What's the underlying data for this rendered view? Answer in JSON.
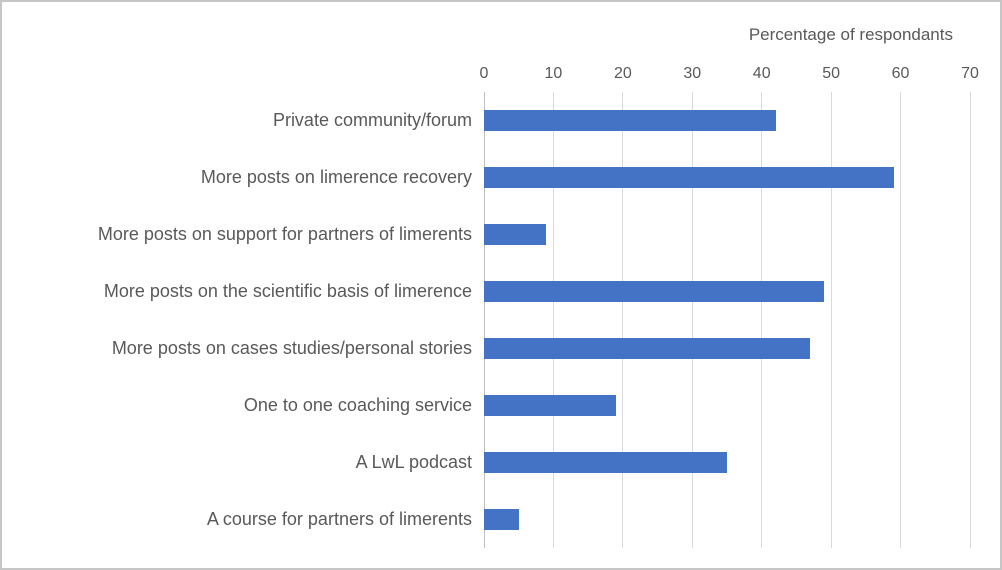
{
  "chart_data": {
    "type": "bar",
    "orientation": "horizontal",
    "title": "Percentage of respondants",
    "categories": [
      "Private community/forum",
      "More posts on limerence recovery",
      "More posts on support for partners of limerents",
      "More posts on the scientific basis of limerence",
      "More posts on cases studies/personal stories",
      "One to one coaching service",
      "A LwL podcast",
      "A course for partners of limerents"
    ],
    "values": [
      42,
      59,
      9,
      49,
      47,
      19,
      35,
      5
    ],
    "xlabel": "Percentage of respondants",
    "ylabel": "",
    "xlim": [
      0,
      70
    ],
    "xticks": [
      0,
      10,
      20,
      30,
      40,
      50,
      60,
      70
    ],
    "xtick_labels": [
      "0",
      "10",
      "20",
      "30",
      "40",
      "50",
      "60",
      "70"
    ],
    "grid": true,
    "legend": false,
    "colors": {
      "bar": "#4472C4",
      "gridline": "#D9D9D9",
      "axis_line": "#BFBFBF",
      "text": "#595959",
      "background": "#FFFFFF",
      "border": "#C6C6C6"
    }
  }
}
